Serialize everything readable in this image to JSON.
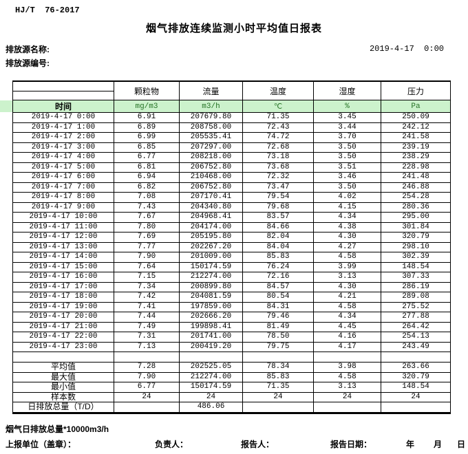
{
  "doc": {
    "standard": "HJ/T  76-2017",
    "title": "烟气排放连续监测小时平均值日报表",
    "source_name_label": "排放源名称:",
    "source_id_label": "排放源编号:",
    "datetime": "2019-4-17  0:00"
  },
  "colors": {
    "time_row_bg": "#ccf2cc",
    "unit_text": "#267326",
    "border": "#000000"
  },
  "table": {
    "time_header": "时间",
    "columns": [
      "颗粒物",
      "流量",
      "温度",
      "湿度",
      "压力"
    ],
    "units": [
      "mg/m3",
      "m3/h",
      "℃",
      "%",
      "Pa"
    ],
    "rows": [
      {
        "time": "2019-4-17  0:00",
        "values": [
          "6.91",
          "207679.80",
          "71.35",
          "3.45",
          "250.09"
        ]
      },
      {
        "time": "2019-4-17  1:00",
        "values": [
          "6.89",
          "208758.00",
          "72.43",
          "3.44",
          "242.12"
        ]
      },
      {
        "time": "2019-4-17  2:00",
        "values": [
          "6.99",
          "205535.41",
          "74.72",
          "3.70",
          "241.58"
        ]
      },
      {
        "time": "2019-4-17  3:00",
        "values": [
          "6.85",
          "207297.00",
          "72.68",
          "3.50",
          "239.19"
        ]
      },
      {
        "time": "2019-4-17  4:00",
        "values": [
          "6.77",
          "208218.00",
          "73.18",
          "3.50",
          "238.29"
        ]
      },
      {
        "time": "2019-4-17  5:00",
        "values": [
          "6.81",
          "206752.80",
          "73.68",
          "3.51",
          "228.98"
        ]
      },
      {
        "time": "2019-4-17  6:00",
        "values": [
          "6.94",
          "210468.00",
          "72.32",
          "3.46",
          "241.48"
        ]
      },
      {
        "time": "2019-4-17  7:00",
        "values": [
          "6.82",
          "206752.80",
          "73.47",
          "3.50",
          "246.88"
        ]
      },
      {
        "time": "2019-4-17  8:00",
        "values": [
          "7.08",
          "207170.41",
          "79.54",
          "4.02",
          "254.28"
        ]
      },
      {
        "time": "2019-4-17  9:00",
        "values": [
          "7.43",
          "204340.80",
          "79.68",
          "4.15",
          "280.36"
        ]
      },
      {
        "time": "2019-4-17 10:00",
        "values": [
          "7.67",
          "204968.41",
          "83.57",
          "4.34",
          "295.00"
        ]
      },
      {
        "time": "2019-4-17 11:00",
        "values": [
          "7.80",
          "204174.00",
          "84.66",
          "4.38",
          "301.84"
        ]
      },
      {
        "time": "2019-4-17 12:00",
        "values": [
          "7.69",
          "205195.80",
          "82.04",
          "4.30",
          "320.79"
        ]
      },
      {
        "time": "2019-4-17 13:00",
        "values": [
          "7.77",
          "202267.20",
          "84.04",
          "4.27",
          "298.10"
        ]
      },
      {
        "time": "2019-4-17 14:00",
        "values": [
          "7.90",
          "201009.00",
          "85.83",
          "4.58",
          "302.39"
        ]
      },
      {
        "time": "2019-4-17 15:00",
        "values": [
          "7.64",
          "150174.59",
          "76.24",
          "3.99",
          "148.54"
        ]
      },
      {
        "time": "2019-4-17 16:00",
        "values": [
          "7.15",
          "212274.00",
          "72.16",
          "3.13",
          "307.33"
        ]
      },
      {
        "time": "2019-4-17 17:00",
        "values": [
          "7.34",
          "200899.80",
          "84.57",
          "4.30",
          "286.19"
        ]
      },
      {
        "time": "2019-4-17 18:00",
        "values": [
          "7.42",
          "204081.59",
          "80.54",
          "4.21",
          "289.08"
        ]
      },
      {
        "time": "2019-4-17 19:00",
        "values": [
          "7.41",
          "197859.00",
          "84.31",
          "4.58",
          "275.52"
        ]
      },
      {
        "time": "2019-4-17 20:00",
        "values": [
          "7.44",
          "202666.20",
          "79.46",
          "4.34",
          "277.88"
        ]
      },
      {
        "time": "2019-4-17 21:00",
        "values": [
          "7.49",
          "199898.41",
          "81.49",
          "4.45",
          "264.42"
        ]
      },
      {
        "time": "2019-4-17 22:00",
        "values": [
          "7.31",
          "201741.00",
          "78.50",
          "4.16",
          "254.13"
        ]
      },
      {
        "time": "2019-4-17 23:00",
        "values": [
          "7.13",
          "200419.20",
          "79.75",
          "4.17",
          "243.49"
        ]
      }
    ],
    "summary": [
      {
        "label": "平均值",
        "values": [
          "7.28",
          "202525.05",
          "78.34",
          "3.98",
          "263.66"
        ]
      },
      {
        "label": "最大值",
        "values": [
          "7.90",
          "212274.00",
          "85.83",
          "4.58",
          "320.79"
        ]
      },
      {
        "label": "最小值",
        "values": [
          "6.77",
          "150174.59",
          "71.35",
          "3.13",
          "148.54"
        ]
      },
      {
        "label": "样本数",
        "values": [
          "24",
          "24",
          "24",
          "24",
          "24"
        ]
      },
      {
        "label": "日排放总量（T/D）",
        "values": [
          "",
          "486.06",
          "",
          "",
          ""
        ]
      }
    ]
  },
  "footer": {
    "note": "烟气日排放总量*10000m3/h",
    "report_unit_label": "上报单位（盖章）：",
    "responsible_label": "负责人：",
    "reporter_label": "报告人：",
    "report_date_label": "报告日期：",
    "year_label": "年",
    "month_label": "月",
    "day_label": "日"
  }
}
